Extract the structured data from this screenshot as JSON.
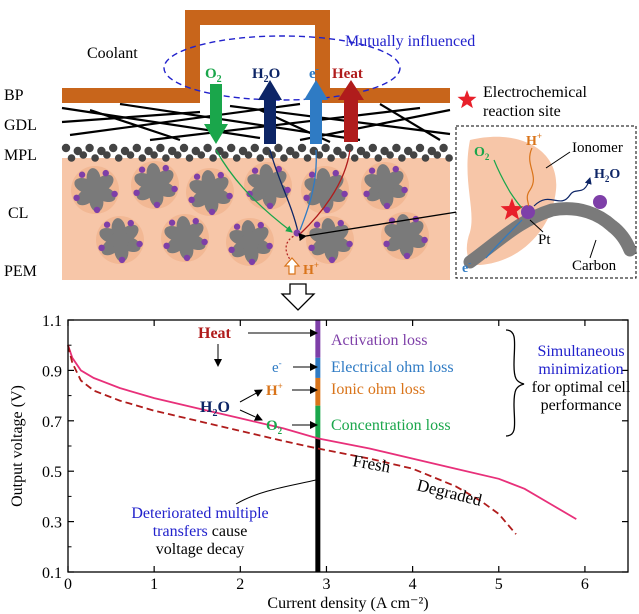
{
  "schematic": {
    "coolant_label": "Coolant",
    "mutual_label": "Mutually influenced",
    "layer_labels": [
      "BP",
      "GDL",
      "MPL",
      "CL",
      "PEM"
    ],
    "transport_labels": [
      {
        "key": "o2",
        "base": "O",
        "sub": "2",
        "sup": "",
        "color": "#1aa64b"
      },
      {
        "key": "h2o",
        "base": "H",
        "sub": "2",
        "sup": "",
        "tail": "O",
        "color": "#0d2566"
      },
      {
        "key": "e",
        "base": "e",
        "sub": "",
        "sup": "-",
        "color": "#2f7bc4"
      },
      {
        "key": "heat",
        "base": "Heat",
        "sub": "",
        "sup": "",
        "color": "#b01c1c"
      }
    ],
    "reaction_legend": [
      "Electrochemical",
      "reaction site"
    ],
    "proton_label": {
      "base": "H",
      "sup": "+"
    },
    "inset": {
      "o2": {
        "base": "O",
        "sub": "2"
      },
      "hplus": {
        "base": "H",
        "sup": "+"
      },
      "ionomer": "Ionomer",
      "h2o": {
        "base": "H",
        "sub": "2",
        "tail": "O"
      },
      "pt": "Pt",
      "carbon": "Carbon",
      "e": {
        "base": "e",
        "sup": "-"
      }
    },
    "colors": {
      "bp": "#c8651b",
      "cl_bg": "#f7c6a8",
      "carbon": "#7a7a7a",
      "pt": "#7e3fa8",
      "star": "#e8202a",
      "dashed": "#2222cc"
    }
  },
  "chart_data": {
    "type": "line",
    "xlabel": "Current density (A cm⁻²)",
    "ylabel": "Output voltage (V)",
    "xlim": [
      0,
      6.5
    ],
    "ylim": [
      0.1,
      1.1
    ],
    "xticks": [
      0,
      1,
      2,
      3,
      4,
      5,
      6
    ],
    "yticks": [
      0.1,
      0.3,
      0.5,
      0.7,
      0.9,
      1.1
    ],
    "xtick_labels": [
      "0",
      "1",
      "2",
      "3",
      "4",
      "5",
      "6"
    ],
    "ytick_labels": [
      "0.1",
      "0.3",
      "0.5",
      "0.7",
      "0.9",
      "1.1"
    ],
    "series": [
      {
        "name": "Fresh",
        "style": "solid",
        "color": "#e8307a",
        "x": [
          0,
          0.05,
          0.15,
          0.3,
          0.6,
          1,
          1.5,
          2,
          2.5,
          2.9,
          3.5,
          4,
          4.5,
          5,
          5.3,
          5.6,
          5.9
        ],
        "y": [
          1.0,
          0.95,
          0.9,
          0.87,
          0.83,
          0.79,
          0.75,
          0.71,
          0.67,
          0.63,
          0.59,
          0.55,
          0.51,
          0.47,
          0.43,
          0.37,
          0.31
        ]
      },
      {
        "name": "Degraded",
        "style": "dashed",
        "color": "#b01c1c",
        "x": [
          0,
          0.05,
          0.15,
          0.3,
          0.6,
          1,
          1.5,
          2,
          2.5,
          2.9,
          3.5,
          4,
          4.5,
          4.8,
          5.0,
          5.1,
          5.2
        ],
        "y": [
          1.0,
          0.93,
          0.86,
          0.82,
          0.78,
          0.74,
          0.7,
          0.66,
          0.62,
          0.59,
          0.55,
          0.51,
          0.44,
          0.38,
          0.33,
          0.29,
          0.25
        ]
      }
    ],
    "operating_x": 2.9,
    "loss_bands": [
      {
        "label": "Activation loss",
        "from": 1.1,
        "to": 0.95,
        "color": "#7e3fa8"
      },
      {
        "label": "Electrical ohm loss",
        "from": 0.95,
        "to": 0.87,
        "color": "#2f7bc4"
      },
      {
        "label": "Ionic ohm loss",
        "from": 0.87,
        "to": 0.76,
        "color": "#d9741a"
      },
      {
        "label": "Concentration loss",
        "from": 0.76,
        "to": 0.63,
        "color": "#1aa64b"
      }
    ],
    "annotations": {
      "heat": "Heat",
      "e": {
        "base": "e",
        "sup": "-"
      },
      "hplus": {
        "base": "H",
        "sup": "+"
      },
      "h2o": {
        "base": "H",
        "sub": "2",
        "tail": "O"
      },
      "o2": {
        "base": "O",
        "sub": "2"
      },
      "simultaneous": [
        "Simultaneous",
        "minimization"
      ],
      "simultaneous_rest": [
        "for optimal cell",
        "performance"
      ],
      "deteriorated": [
        "Deteriorated multiple",
        "transfers"
      ],
      "cause": "cause",
      "decay": "voltage decay"
    }
  }
}
